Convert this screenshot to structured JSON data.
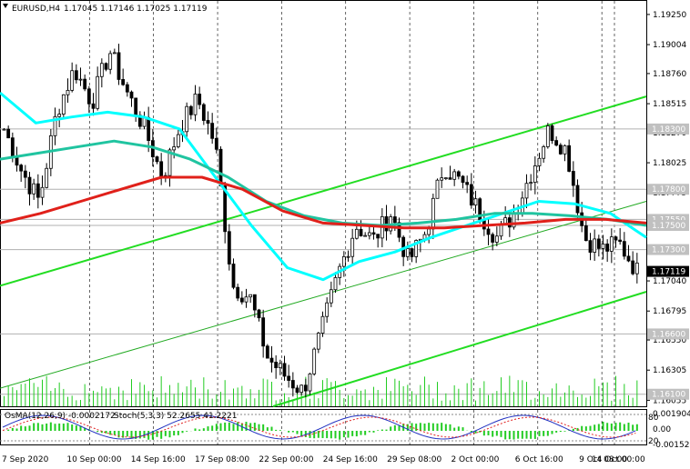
{
  "header": {
    "symbol": "EURUSD,H4",
    "quote": "1.17045 1.17146 1.17025 1.17119"
  },
  "osma_label": "OsMA(12,26,9) -0.0002172",
  "stoch_label": "Stoch(5,3,3) 52.2655 41.2221",
  "chart_data": {
    "type": "candlestick",
    "price_ticks": [
      1.1925,
      1.19,
      1.1876,
      1.1851,
      1.1827,
      1.1802,
      1.1777,
      1.1753,
      1.1728,
      1.1704,
      1.1679,
      1.1655,
      1.163,
      1.1605
    ],
    "price_tick_labels": [
      "1.19250",
      "1.19004",
      "1.18760",
      "1.18515",
      "1.18270",
      "1.18025",
      "1.17775",
      "1.17530",
      "1.17285",
      "1.17040",
      "1.16795",
      "1.16550",
      "1.16305",
      "1.16055"
    ],
    "ylim": [
      1.16,
      1.1937
    ],
    "highlighted_levels": [
      {
        "value": 1.183,
        "label": "1.18300"
      },
      {
        "value": 1.178,
        "label": "1.17800"
      },
      {
        "value": 1.1755,
        "label": "1.17550"
      },
      {
        "value": 1.175,
        "label": "1.17500"
      },
      {
        "value": 1.173,
        "label": "1.17300"
      },
      {
        "value": 1.166,
        "label": "1.16600"
      },
      {
        "value": 1.161,
        "label": "1.16100"
      }
    ],
    "current_price": {
      "value": 1.17119,
      "label": "1.17119"
    },
    "time_labels": [
      "7 Sep 2020",
      "10 Sep 00:00",
      "14 Sep 16:00",
      "17 Sep 08:00",
      "22 Sep 00:00",
      "24 Sep 16:00",
      "29 Sep 08:00",
      "2 Oct 00:00",
      "6 Oct 16:00",
      "9 Oct 08:00",
      "14 Oct 00:00"
    ],
    "osma_ticks": [
      "0.0019041",
      "0.00",
      "-0.001522"
    ],
    "stoch_ticks": [
      "80",
      "20"
    ],
    "close_anchors": [
      1.183,
      1.1795,
      1.177,
      1.1845,
      1.188,
      1.1852,
      1.1895,
      1.186,
      1.183,
      1.179,
      1.1832,
      1.1855,
      1.1818,
      1.17,
      1.169,
      1.164,
      1.1625,
      1.1612,
      1.166,
      1.171,
      1.175,
      1.1738,
      1.176,
      1.172,
      1.1745,
      1.18,
      1.1785,
      1.1762,
      1.174,
      1.176,
      1.1795,
      1.183,
      1.1812,
      1.174,
      1.173,
      1.1735,
      1.1712
    ],
    "moving_averages": [
      {
        "color": "#00ffff",
        "points": [
          1.186,
          1.1835,
          1.184,
          1.1844,
          1.184,
          1.183,
          1.179,
          1.175,
          1.1715,
          1.1705,
          1.172,
          1.1728,
          1.174,
          1.175,
          1.176,
          1.177,
          1.1768,
          1.176,
          1.174
        ]
      },
      {
        "color": "#20c4a0",
        "points": [
          1.1805,
          1.181,
          1.1815,
          1.182,
          1.1815,
          1.1805,
          1.179,
          1.177,
          1.1758,
          1.1752,
          1.175,
          1.1752,
          1.1755,
          1.176,
          1.176,
          1.1758,
          1.1755,
          1.175
        ]
      },
      {
        "color": "#e0201a",
        "points": [
          1.1752,
          1.176,
          1.177,
          1.178,
          1.179,
          1.179,
          1.178,
          1.1762,
          1.1752,
          1.175,
          1.1748,
          1.1748,
          1.175,
          1.1752,
          1.1755,
          1.1755,
          1.1752
        ]
      }
    ]
  }
}
